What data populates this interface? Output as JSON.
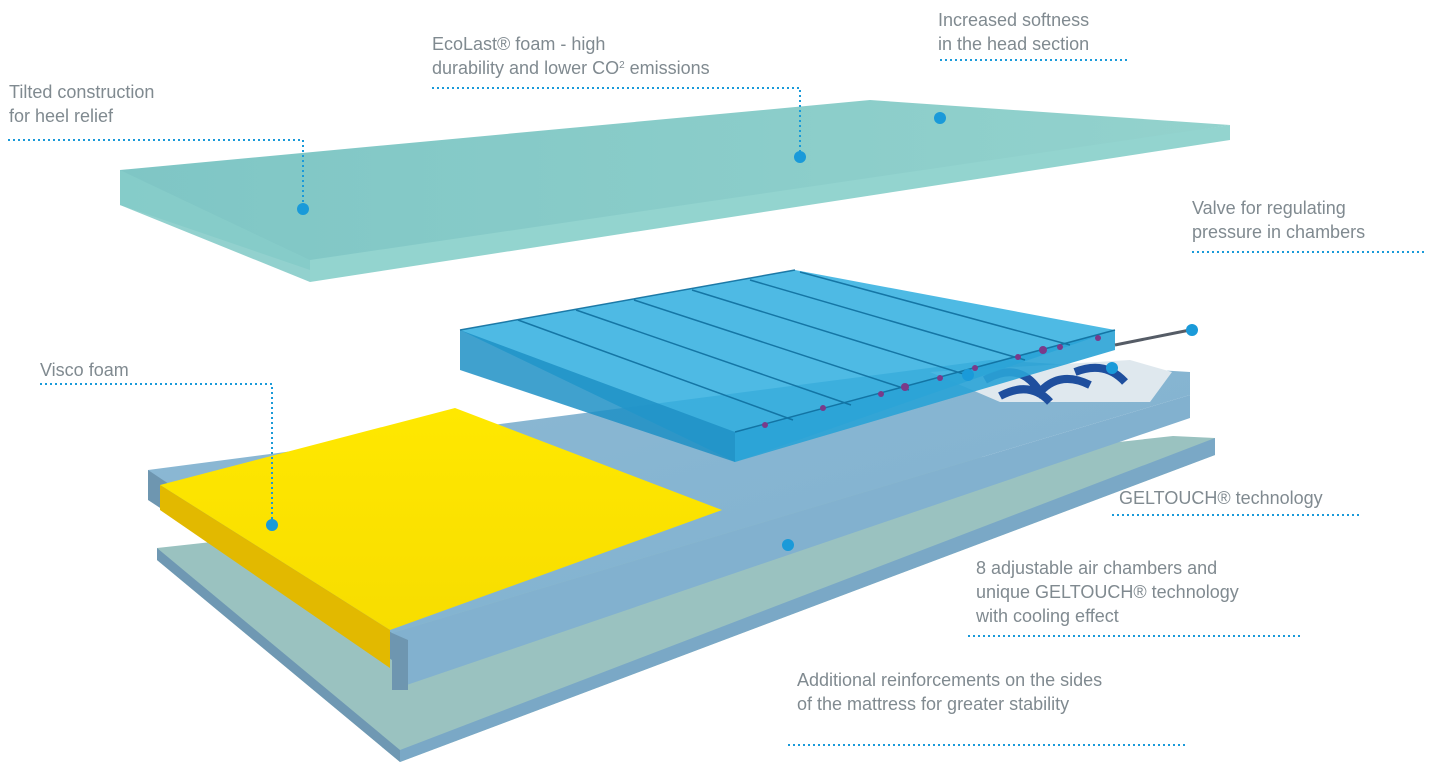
{
  "colors": {
    "accent": "#1a9ad9",
    "label_text": "#808a90",
    "top_foam": "#87cbc8",
    "base_foam": "#8fbcd6",
    "visco_foam": "#ffe600",
    "air_chambers": "#38b4e4",
    "geltouch": "#1f4f9e"
  },
  "callouts": [
    {
      "id": "tilted",
      "lines": [
        "Tilted construction",
        "for heel relief"
      ]
    },
    {
      "id": "ecolast",
      "lines": [
        "EcoLast® foam - high",
        "durability and lower CO"
      ],
      "sup": "2",
      "line2_suffix": " emissions"
    },
    {
      "id": "softness",
      "lines": [
        "Increased softness",
        "in the head section"
      ]
    },
    {
      "id": "valve",
      "lines": [
        "Valve for regulating",
        "pressure in chambers"
      ]
    },
    {
      "id": "visco",
      "lines": [
        "Visco foam"
      ]
    },
    {
      "id": "geltouch",
      "lines": [
        "GELTOUCH® technology"
      ]
    },
    {
      "id": "chambers",
      "lines": [
        "8 adjustable air chambers and",
        "unique GELTOUCH® technology",
        "with cooling effect"
      ]
    },
    {
      "id": "reinforcements",
      "lines": [
        "Additional reinforcements on the sides",
        "of the mattress for greater stability"
      ]
    }
  ]
}
